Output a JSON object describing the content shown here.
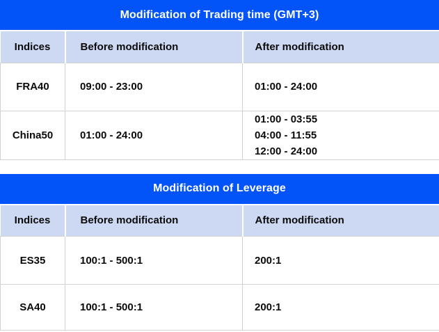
{
  "colors": {
    "title_bar_blue": "#0254f8",
    "header_bg": "#cdd9f3",
    "border_gray": "#d2d2d2",
    "title_text": "#ffffff",
    "cell_text": "#0a0a0a"
  },
  "tables": [
    {
      "title": "Modification of Trading time (GMT+3)",
      "columns": [
        "Indices",
        "Before modification",
        "After modification"
      ],
      "rows": [
        {
          "indices": "FRA40",
          "before": "09:00 - 23:00",
          "after": "01:00 - 24:00"
        },
        {
          "indices": "China50",
          "before": "01:00 - 24:00",
          "after": "01:00 - 03:55\n04:00 - 11:55\n12:00 - 24:00"
        }
      ]
    },
    {
      "title": "Modification of Leverage",
      "columns": [
        "Indices",
        "Before modification",
        "After modification"
      ],
      "rows": [
        {
          "indices": "ES35",
          "before": "100:1 - 500:1",
          "after": "200:1"
        },
        {
          "indices": "SA40",
          "before": "100:1 - 500:1",
          "after": "200:1"
        }
      ]
    }
  ]
}
